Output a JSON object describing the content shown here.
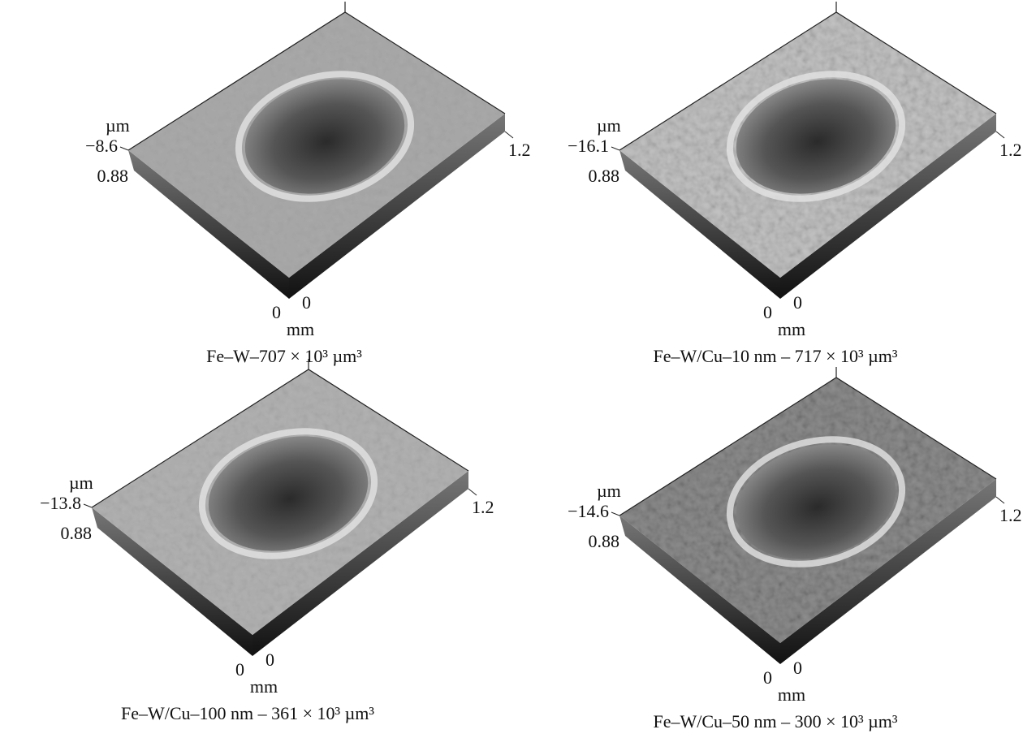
{
  "panels": [
    {
      "z_unit": "µm",
      "z_value": "−8.6",
      "y_max": "0.88",
      "x_max": "1.2",
      "y_origin": "0",
      "x_origin": "0",
      "xy_unit": "mm",
      "caption": "Fe–W–707 × 10³ µm³"
    },
    {
      "z_unit": "µm",
      "z_value": "−16.1",
      "y_max": "0.88",
      "x_max": "1.2",
      "y_origin": "0",
      "x_origin": "0",
      "xy_unit": "mm",
      "caption": "Fe–W/Cu–10 nm – 717 × 10³ µm³"
    },
    {
      "z_unit": "µm",
      "z_value": "−13.8",
      "y_max": "0.88",
      "x_max": "1.2",
      "y_origin": "0",
      "x_origin": "0",
      "xy_unit": "mm",
      "caption": "Fe–W/Cu–100 nm – 361 × 10³ µm³"
    },
    {
      "z_unit": "µm",
      "z_value": "−14.6",
      "y_max": "0.88",
      "x_max": "1.2",
      "y_origin": "0",
      "x_origin": "0",
      "xy_unit": "mm",
      "caption": "Fe–W/Cu–50 nm – 300 × 10³ µm³"
    }
  ]
}
